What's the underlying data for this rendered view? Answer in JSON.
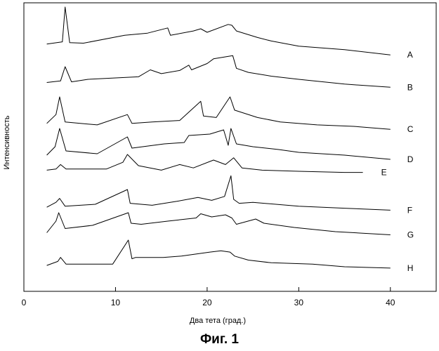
{
  "figure": {
    "caption": "Фиг. 1"
  },
  "chart_data": {
    "type": "line",
    "xlabel": "Два тета (град.)",
    "ylabel": "Интенсивность",
    "xlim": [
      0,
      45
    ],
    "xticks": [
      0,
      10,
      20,
      30,
      40
    ],
    "grid": false,
    "series": [
      {
        "name": "A",
        "x": [
          2.5,
          4.2,
          4.5,
          5.0,
          6.5,
          11.0,
          13.5,
          15.7,
          16.0,
          18.5,
          19.3,
          20.0,
          22.3,
          22.7,
          23.2,
          25.5,
          27.0,
          30.0,
          35.0,
          40.0
        ],
        "y": [
          0.15,
          0.2,
          1.0,
          0.18,
          0.17,
          0.35,
          0.4,
          0.52,
          0.35,
          0.45,
          0.5,
          0.42,
          0.6,
          0.58,
          0.45,
          0.3,
          0.22,
          0.1,
          0.02,
          -0.1
        ]
      },
      {
        "name": "B",
        "x": [
          2.5,
          4.0,
          4.5,
          5.2,
          7.0,
          12.5,
          13.8,
          15.0,
          17.0,
          18.0,
          18.3,
          20.0,
          20.7,
          22.8,
          23.2,
          24.5,
          27.0,
          30.0,
          35.0,
          40.0
        ],
        "y": [
          0.1,
          0.15,
          0.6,
          0.12,
          0.2,
          0.28,
          0.5,
          0.38,
          0.48,
          0.65,
          0.5,
          0.7,
          0.85,
          0.95,
          0.55,
          0.42,
          0.3,
          0.2,
          0.05,
          -0.05
        ]
      },
      {
        "name": "C",
        "x": [
          2.5,
          3.5,
          3.9,
          4.5,
          8.0,
          11.3,
          11.8,
          14.0,
          17.0,
          19.3,
          19.6,
          21.0,
          22.5,
          23.0,
          25.5,
          28.0,
          32.0,
          36.0,
          40.0
        ],
        "y": [
          0.1,
          0.4,
          1.0,
          0.15,
          0.05,
          0.4,
          0.1,
          0.15,
          0.2,
          0.85,
          0.35,
          0.3,
          1.0,
          0.55,
          0.3,
          0.15,
          0.05,
          0.0,
          -0.1
        ]
      },
      {
        "name": "D",
        "x": [
          2.5,
          3.4,
          3.9,
          4.6,
          8.0,
          11.3,
          11.8,
          15.3,
          17.5,
          18.0,
          20.3,
          21.8,
          22.3,
          22.6,
          23.2,
          25.0,
          27.8,
          30.0,
          35.0,
          40.0
        ],
        "y": [
          0.05,
          0.35,
          1.0,
          0.2,
          0.1,
          0.7,
          0.3,
          0.45,
          0.5,
          0.75,
          0.8,
          0.95,
          0.4,
          1.0,
          0.45,
          0.35,
          0.25,
          0.15,
          0.05,
          -0.1
        ]
      },
      {
        "name": "E",
        "x": [
          2.5,
          3.5,
          4.0,
          4.6,
          9.0,
          10.8,
          11.3,
          12.5,
          15.0,
          17.0,
          18.5,
          20.7,
          22.0,
          22.9,
          23.8,
          26.0,
          30.0,
          35.0,
          37.0
        ],
        "y": [
          0.05,
          0.1,
          0.3,
          0.1,
          0.1,
          0.4,
          0.75,
          0.25,
          0.05,
          0.3,
          0.15,
          0.5,
          0.3,
          0.6,
          0.15,
          0.05,
          0.0,
          -0.05,
          -0.05
        ]
      },
      {
        "name": "F",
        "x": [
          2.5,
          3.5,
          3.9,
          4.5,
          7.8,
          11.3,
          11.6,
          14.0,
          16.7,
          19.0,
          20.5,
          21.9,
          22.6,
          22.9,
          23.5,
          25.0,
          30.0,
          35.0,
          40.0
        ],
        "y": [
          0.1,
          0.35,
          0.55,
          0.15,
          0.25,
          1.0,
          0.3,
          0.2,
          0.4,
          0.6,
          0.45,
          0.65,
          1.7,
          0.5,
          0.3,
          0.35,
          0.15,
          0.05,
          -0.05
        ]
      },
      {
        "name": "G",
        "x": [
          2.5,
          3.5,
          3.8,
          4.5,
          7.5,
          11.4,
          11.7,
          12.8,
          15.7,
          18.8,
          19.3,
          20.5,
          22.0,
          22.7,
          23.2,
          25.3,
          26.2,
          29.5,
          34.0,
          40.0
        ],
        "y": [
          0.05,
          0.6,
          1.0,
          0.25,
          0.4,
          1.0,
          0.5,
          0.45,
          0.6,
          0.75,
          0.95,
          0.8,
          0.9,
          0.75,
          0.45,
          0.7,
          0.5,
          0.3,
          0.1,
          -0.05
        ]
      },
      {
        "name": "H",
        "x": [
          2.5,
          3.7,
          4.0,
          4.6,
          9.7,
          11.4,
          11.8,
          12.2,
          15.2,
          17.2,
          20.3,
          21.5,
          22.5,
          23.0,
          24.5,
          27.0,
          31.5,
          35.0,
          40.0
        ],
        "y": [
          0.05,
          0.2,
          0.35,
          0.1,
          0.1,
          1.0,
          0.3,
          0.35,
          0.35,
          0.4,
          0.55,
          0.6,
          0.55,
          0.4,
          0.25,
          0.15,
          0.1,
          0.0,
          -0.05
        ]
      }
    ]
  }
}
